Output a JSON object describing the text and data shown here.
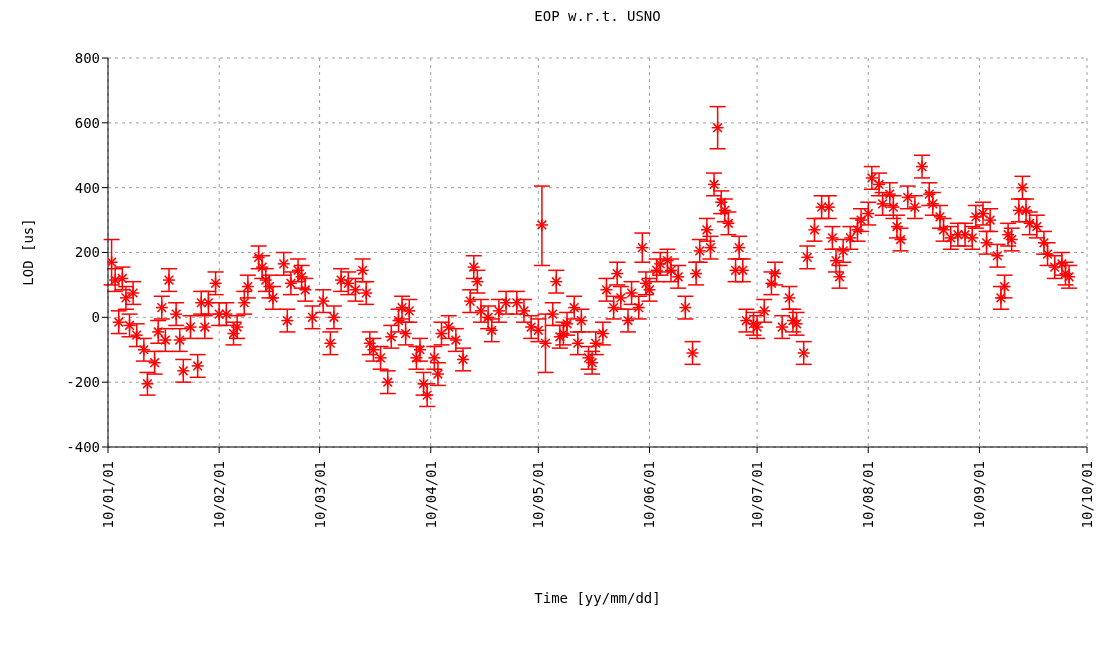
{
  "chart_data": {
    "type": "scatter",
    "title": "EOP w.r.t. USNO",
    "xlabel": "Time [yy/mm/dd]",
    "ylabel": "LOD [us]",
    "color": "#ff0000",
    "marker": "cross",
    "grid": true,
    "x": [
      "2010-01-02",
      "2010-01-03",
      "2010-01-04",
      "2010-01-05",
      "2010-01-06",
      "2010-01-07",
      "2010-01-08",
      "2010-01-09",
      "2010-01-11",
      "2010-01-12",
      "2010-01-14",
      "2010-01-15",
      "2010-01-16",
      "2010-01-17",
      "2010-01-18",
      "2010-01-20",
      "2010-01-21",
      "2010-01-22",
      "2010-01-24",
      "2010-01-26",
      "2010-01-27",
      "2010-01-28",
      "2010-01-29",
      "2010-01-31",
      "2010-02-01",
      "2010-02-03",
      "2010-02-05",
      "2010-02-06",
      "2010-02-08",
      "2010-02-09",
      "2010-02-12",
      "2010-02-13",
      "2010-02-14",
      "2010-02-15",
      "2010-02-16",
      "2010-02-19",
      "2010-02-20",
      "2010-02-21",
      "2010-02-23",
      "2010-02-24",
      "2010-02-25",
      "2010-02-27",
      "2010-03-02",
      "2010-03-04",
      "2010-03-05",
      "2010-03-07",
      "2010-03-09",
      "2010-03-11",
      "2010-03-13",
      "2010-03-14",
      "2010-03-15",
      "2010-03-16",
      "2010-03-18",
      "2010-03-20",
      "2010-03-21",
      "2010-03-23",
      "2010-03-24",
      "2010-03-25",
      "2010-03-26",
      "2010-03-28",
      "2010-03-29",
      "2010-03-30",
      "2010-03-31",
      "2010-04-02",
      "2010-04-03",
      "2010-04-04",
      "2010-04-06",
      "2010-04-08",
      "2010-04-10",
      "2010-04-12",
      "2010-04-13",
      "2010-04-14",
      "2010-04-15",
      "2010-04-17",
      "2010-04-18",
      "2010-04-20",
      "2010-04-22",
      "2010-04-25",
      "2010-04-27",
      "2010-04-29",
      "2010-05-01",
      "2010-05-02",
      "2010-05-03",
      "2010-05-05",
      "2010-05-06",
      "2010-05-07",
      "2010-05-08",
      "2010-05-09",
      "2010-05-11",
      "2010-05-12",
      "2010-05-13",
      "2010-05-15",
      "2010-05-16",
      "2010-05-17",
      "2010-05-19",
      "2010-05-20",
      "2010-05-22",
      "2010-05-23",
      "2010-05-24",
      "2010-05-26",
      "2010-05-27",
      "2010-05-29",
      "2010-05-30",
      "2010-05-31",
      "2010-06-01",
      "2010-06-03",
      "2010-06-04",
      "2010-06-06",
      "2010-06-07",
      "2010-06-09",
      "2010-06-11",
      "2010-06-13",
      "2010-06-14",
      "2010-06-15",
      "2010-06-17",
      "2010-06-18",
      "2010-06-19",
      "2010-06-20",
      "2010-06-21",
      "2010-06-22",
      "2010-06-23",
      "2010-06-25",
      "2010-06-26",
      "2010-06-27",
      "2010-06-28",
      "2010-06-30",
      "2010-07-01",
      "2010-07-03",
      "2010-07-05",
      "2010-07-06",
      "2010-07-08",
      "2010-07-10",
      "2010-07-11",
      "2010-07-12",
      "2010-07-14",
      "2010-07-15",
      "2010-07-17",
      "2010-07-19",
      "2010-07-21",
      "2010-07-22",
      "2010-07-23",
      "2010-07-24",
      "2010-07-25",
      "2010-07-27",
      "2010-07-29",
      "2010-07-30",
      "2010-08-01",
      "2010-08-02",
      "2010-08-04",
      "2010-08-05",
      "2010-08-07",
      "2010-08-08",
      "2010-08-09",
      "2010-08-10",
      "2010-08-12",
      "2010-08-14",
      "2010-08-16",
      "2010-08-18",
      "2010-08-19",
      "2010-08-21",
      "2010-08-22",
      "2010-08-24",
      "2010-08-26",
      "2010-08-28",
      "2010-08-30",
      "2010-08-31",
      "2010-09-02",
      "2010-09-03",
      "2010-09-04",
      "2010-09-06",
      "2010-09-07",
      "2010-09-08",
      "2010-09-09",
      "2010-09-10",
      "2010-09-12",
      "2010-09-13",
      "2010-09-14",
      "2010-09-15",
      "2010-09-17",
      "2010-09-19",
      "2010-09-20",
      "2010-09-22",
      "2010-09-24",
      "2010-09-25",
      "2010-09-26"
    ],
    "values": [
      170,
      115,
      -15,
      120,
      60,
      -25,
      75,
      -55,
      -100,
      -205,
      -140,
      -45,
      30,
      -70,
      115,
      10,
      -70,
      -165,
      -30,
      -150,
      45,
      -30,
      45,
      105,
      10,
      10,
      -50,
      -30,
      45,
      95,
      185,
      155,
      115,
      95,
      60,
      165,
      -10,
      105,
      145,
      125,
      85,
      0,
      50,
      -80,
      0,
      115,
      105,
      85,
      145,
      75,
      -80,
      -100,
      -125,
      -200,
      -60,
      -10,
      30,
      -50,
      20,
      -125,
      -100,
      -205,
      -240,
      -125,
      -175,
      -50,
      -30,
      -70,
      -130,
      50,
      155,
      110,
      20,
      0,
      -40,
      20,
      45,
      45,
      20,
      -30,
      -40,
      285,
      -80,
      10,
      110,
      -60,
      -50,
      -20,
      30,
      -80,
      -10,
      -125,
      -140,
      -80,
      -50,
      85,
      30,
      135,
      60,
      -10,
      75,
      30,
      215,
      105,
      85,
      145,
      165,
      175,
      145,
      125,
      30,
      -110,
      135,
      205,
      270,
      215,
      410,
      585,
      355,
      330,
      290,
      145,
      215,
      145,
      -10,
      -20,
      -30,
      20,
      105,
      135,
      -30,
      60,
      -10,
      -20,
      -110,
      185,
      270,
      340,
      340,
      245,
      175,
      125,
      205,
      245,
      270,
      300,
      320,
      430,
      410,
      350,
      380,
      340,
      280,
      240,
      370,
      340,
      465,
      380,
      350,
      310,
      270,
      245,
      255,
      255,
      245,
      310,
      320,
      230,
      300,
      190,
      60,
      95,
      255,
      240,
      330,
      400,
      330,
      290,
      280,
      230,
      195,
      155,
      165,
      135,
      125
    ],
    "errors": [
      70,
      35,
      35,
      35,
      35,
      35,
      35,
      35,
      35,
      35,
      35,
      35,
      35,
      35,
      35,
      35,
      35,
      35,
      35,
      35,
      35,
      35,
      35,
      35,
      35,
      35,
      35,
      35,
      35,
      35,
      35,
      35,
      35,
      35,
      35,
      35,
      35,
      35,
      35,
      35,
      35,
      35,
      35,
      35,
      35,
      35,
      35,
      35,
      35,
      35,
      35,
      35,
      35,
      35,
      35,
      35,
      35,
      35,
      35,
      35,
      35,
      35,
      35,
      35,
      35,
      35,
      35,
      35,
      35,
      35,
      35,
      35,
      35,
      35,
      35,
      35,
      35,
      35,
      35,
      35,
      35,
      [
        160,
        405
      ],
      [
        -170,
        10
      ],
      35,
      35,
      35,
      35,
      35,
      35,
      35,
      35,
      35,
      35,
      35,
      35,
      35,
      35,
      35,
      35,
      35,
      35,
      35,
      45,
      35,
      35,
      35,
      35,
      35,
      35,
      35,
      35,
      35,
      35,
      35,
      35,
      35,
      35,
      65,
      35,
      35,
      35,
      35,
      35,
      35,
      35,
      35,
      35,
      35,
      35,
      35,
      35,
      35,
      35,
      35,
      35,
      35,
      35,
      35,
      35,
      35,
      35,
      35,
      35,
      35,
      35,
      35,
      35,
      35,
      35,
      35,
      35,
      35,
      35,
      35,
      35,
      35,
      35,
      35,
      35,
      35,
      35,
      35,
      35,
      35,
      35,
      35,
      35,
      35,
      35,
      35,
      35,
      35,
      35,
      35,
      35,
      35,
      35,
      35,
      35,
      35,
      35,
      35,
      35,
      35,
      35
    ],
    "xlim": [
      "2010-01-01",
      "2010-10-01"
    ],
    "xticks": [
      {
        "value": "2010-01-01",
        "label": "10/01/01"
      },
      {
        "value": "2010-02-01",
        "label": "10/02/01"
      },
      {
        "value": "2010-03-01",
        "label": "10/03/01"
      },
      {
        "value": "2010-04-01",
        "label": "10/04/01"
      },
      {
        "value": "2010-05-01",
        "label": "10/05/01"
      },
      {
        "value": "2010-06-01",
        "label": "10/06/01"
      },
      {
        "value": "2010-07-01",
        "label": "10/07/01"
      },
      {
        "value": "2010-08-01",
        "label": "10/08/01"
      },
      {
        "value": "2010-09-01",
        "label": "10/09/01"
      },
      {
        "value": "2010-10-01",
        "label": "10/10/01"
      }
    ],
    "ylim": [
      -400,
      800
    ],
    "yticks": [
      -400,
      -200,
      0,
      200,
      400,
      600,
      800
    ]
  }
}
